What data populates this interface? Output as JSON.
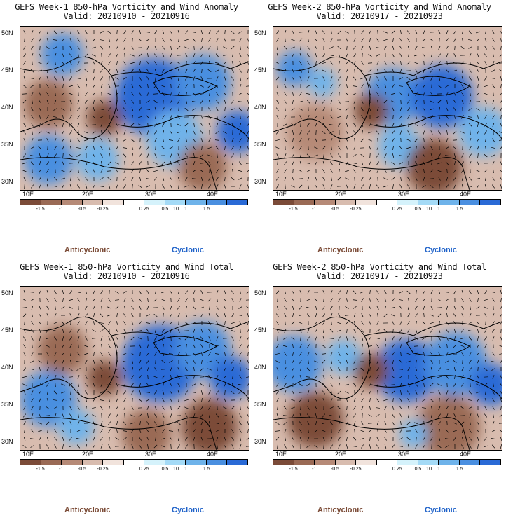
{
  "panels": [
    {
      "title": "GEFS Week-1 850-hPa Vorticity and Wind Anomaly",
      "valid": "Valid: 20210910 - 20210916"
    },
    {
      "title": "GEFS Week-2 850-hPa Vorticity and Wind Anomaly",
      "valid": "Valid: 20210917 - 20210923"
    },
    {
      "title": "GEFS Week-1 850-hPa Vorticity and Wind Total",
      "valid": "Valid: 20210910 - 20210916"
    },
    {
      "title": "GEFS Week-2 850-hPa Vorticity and Wind Total",
      "valid": "Valid: 20210917 - 20210923"
    }
  ],
  "axes": {
    "lat_labels": [
      "50N",
      "45N",
      "40N",
      "35N",
      "30N"
    ],
    "lon_labels": [
      "10E",
      "20E",
      "30E",
      "40E"
    ]
  },
  "colorbar": {
    "labels": [
      "-1.5",
      "-1",
      "-0.5",
      "-0.25",
      "0.25",
      "0.5",
      "1",
      "1.5"
    ],
    "scale_note": "10",
    "colors": [
      "#7b4b38",
      "#9a6a55",
      "#b68a77",
      "#d8bcaf",
      "#f1e3dc",
      "#ffffff",
      "#d5f2fb",
      "#a4daf6",
      "#6fb3ea",
      "#4a8fe0",
      "#2a6ad6"
    ]
  },
  "legend": {
    "anticyclonic": "Anticyclonic",
    "cyclonic": "Cyclonic"
  }
}
